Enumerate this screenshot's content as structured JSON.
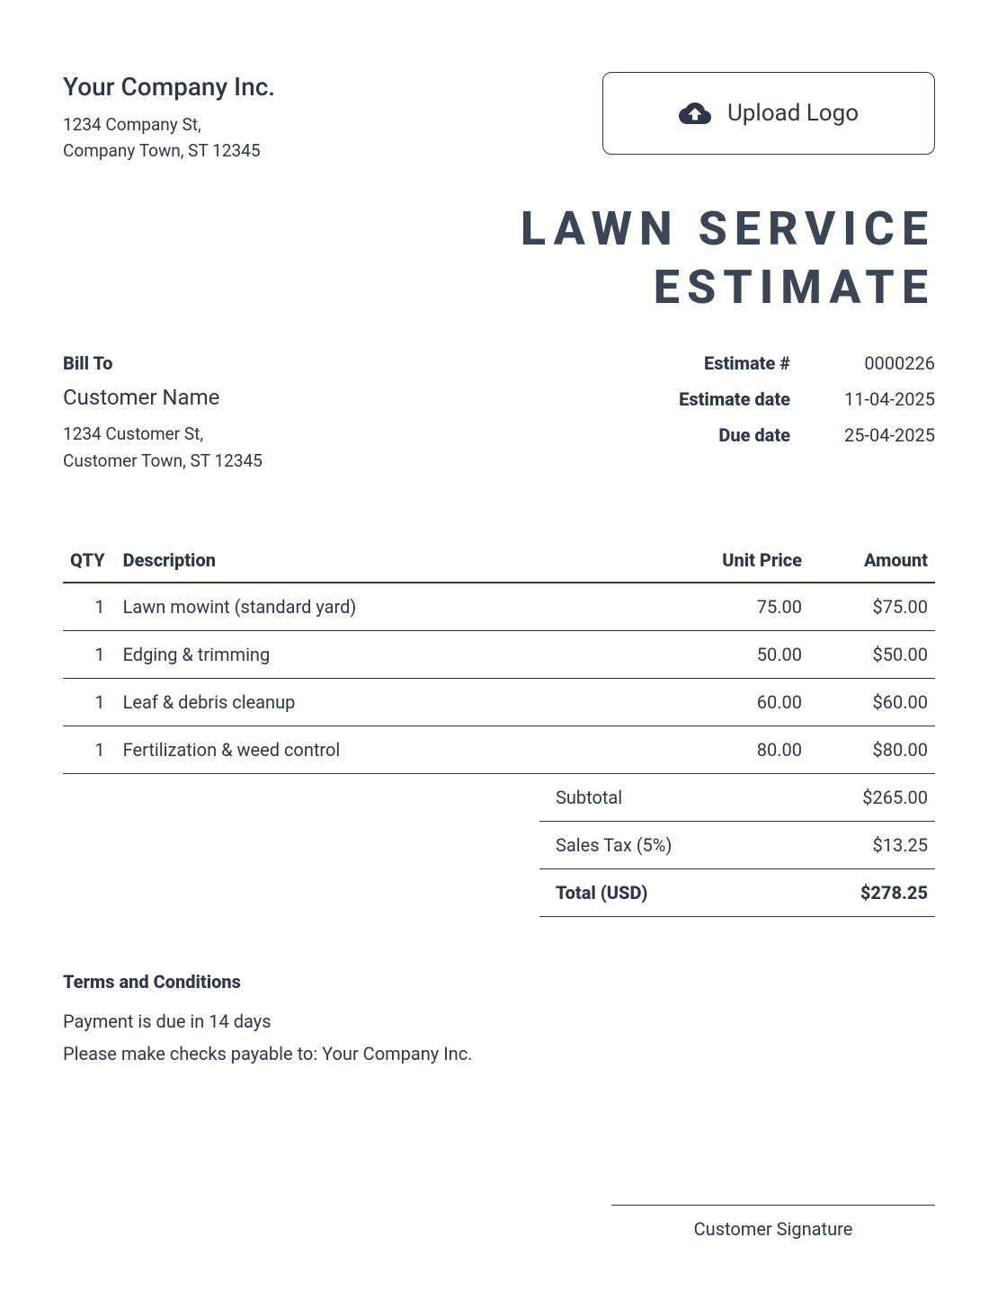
{
  "company": {
    "name": "Your Company Inc.",
    "address_line1": "1234 Company St,",
    "address_line2": "Company Town, ST 12345"
  },
  "upload_logo": {
    "label": "Upload Logo"
  },
  "document": {
    "title_line1": "LAWN SERVICE",
    "title_line2": "ESTIMATE"
  },
  "bill_to": {
    "label": "Bill To",
    "customer_name": "Customer Name",
    "address_line1": "1234 Customer St,",
    "address_line2": "Customer Town, ST 12345"
  },
  "meta": {
    "estimate_number_label": "Estimate #",
    "estimate_number": "0000226",
    "estimate_date_label": "Estimate date",
    "estimate_date": "11-04-2025",
    "due_date_label": "Due date",
    "due_date": "25-04-2025"
  },
  "table": {
    "headers": {
      "qty": "QTY",
      "description": "Description",
      "unit_price": "Unit Price",
      "amount": "Amount"
    },
    "rows": [
      {
        "qty": "1",
        "description": "Lawn mowint (standard yard)",
        "unit_price": "75.00",
        "amount": "$75.00"
      },
      {
        "qty": "1",
        "description": "Edging & trimming",
        "unit_price": "50.00",
        "amount": "$50.00"
      },
      {
        "qty": "1",
        "description": "Leaf & debris cleanup",
        "unit_price": "60.00",
        "amount": "$60.00"
      },
      {
        "qty": "1",
        "description": "Fertilization & weed control",
        "unit_price": "80.00",
        "amount": "$80.00"
      }
    ]
  },
  "totals": {
    "subtotal_label": "Subtotal",
    "subtotal": "$265.00",
    "tax_label": "Sales Tax (5%)",
    "tax": "$13.25",
    "total_label": "Total (USD)",
    "total": "$278.25"
  },
  "terms": {
    "title": "Terms and Conditions",
    "line1": "Payment is due in 14 days",
    "line2": "Please make checks payable to: Your Company Inc."
  },
  "signature": {
    "label": "Customer Signature"
  },
  "colors": {
    "text": "#2d3748",
    "title": "#3a4556",
    "border": "#2d3748",
    "background": "#ffffff"
  }
}
